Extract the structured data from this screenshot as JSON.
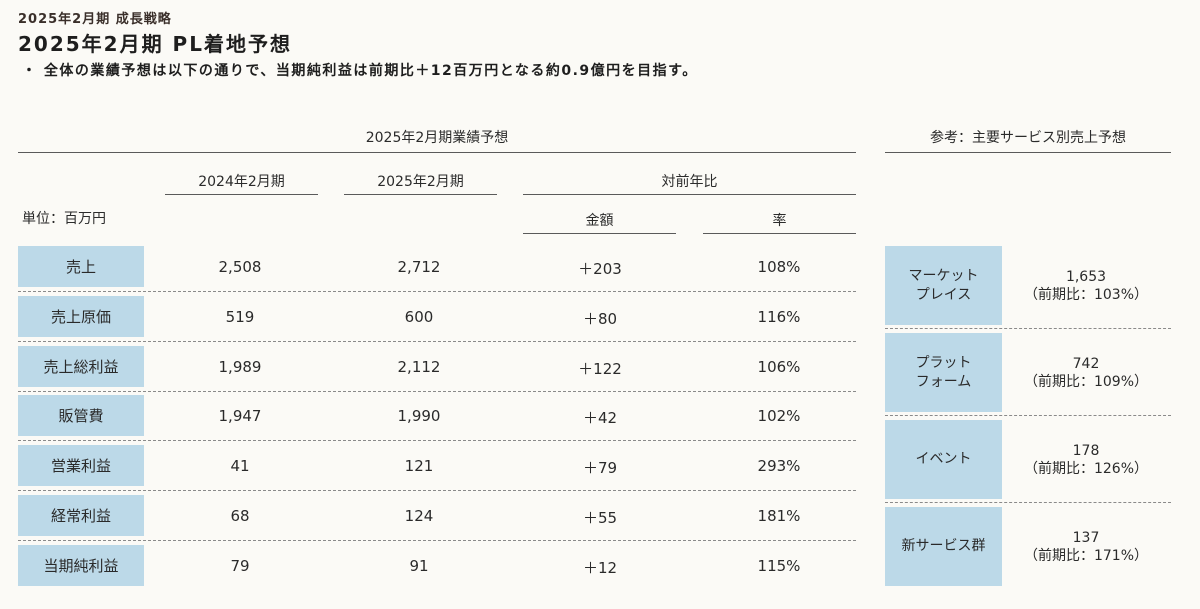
{
  "header": {
    "category": "2025年2月期 成長戦略",
    "title": "2025年2月期 PL着地予想",
    "bullet": "・ 全体の業績予想は以下の通りで、当期純利益は前期比＋12百万円となる約0.9億円を目指す。"
  },
  "forecast": {
    "section_title": "2025年2月期業績予想",
    "unit_label": "単位：百万円",
    "col_prev": "2024年2月期",
    "col_curr": "2025年2月期",
    "col_yoy": "対前年比",
    "col_amount": "金額",
    "col_rate": "率",
    "rows": [
      {
        "label": "売上",
        "prev": "2,508",
        "curr": "2,712",
        "diff": "＋203",
        "rate": "108%"
      },
      {
        "label": "売上原価",
        "prev": "519",
        "curr": "600",
        "diff": "＋80",
        "rate": "116%"
      },
      {
        "label": "売上総利益",
        "prev": "1,989",
        "curr": "2,112",
        "diff": "＋122",
        "rate": "106%"
      },
      {
        "label": "販管費",
        "prev": "1,947",
        "curr": "1,990",
        "diff": "＋42",
        "rate": "102%"
      },
      {
        "label": "営業利益",
        "prev": "41",
        "curr": "121",
        "diff": "＋79",
        "rate": "293%"
      },
      {
        "label": "経常利益",
        "prev": "68",
        "curr": "124",
        "diff": "＋55",
        "rate": "181%"
      },
      {
        "label": "当期純利益",
        "prev": "79",
        "curr": "91",
        "diff": "＋12",
        "rate": "115%"
      }
    ]
  },
  "services": {
    "section_title": "参考：主要サービス別売上予想",
    "items": [
      {
        "label": "マーケット\nプレイス",
        "value": "1,653",
        "yoy": "（前期比：103%）"
      },
      {
        "label": "プラット\nフォーム",
        "value": "742",
        "yoy": "（前期比：109%）"
      },
      {
        "label": "イベント",
        "value": "178",
        "yoy": "（前期比：126%）"
      },
      {
        "label": "新サービス群",
        "value": "137",
        "yoy": "（前期比：171%）"
      }
    ]
  }
}
